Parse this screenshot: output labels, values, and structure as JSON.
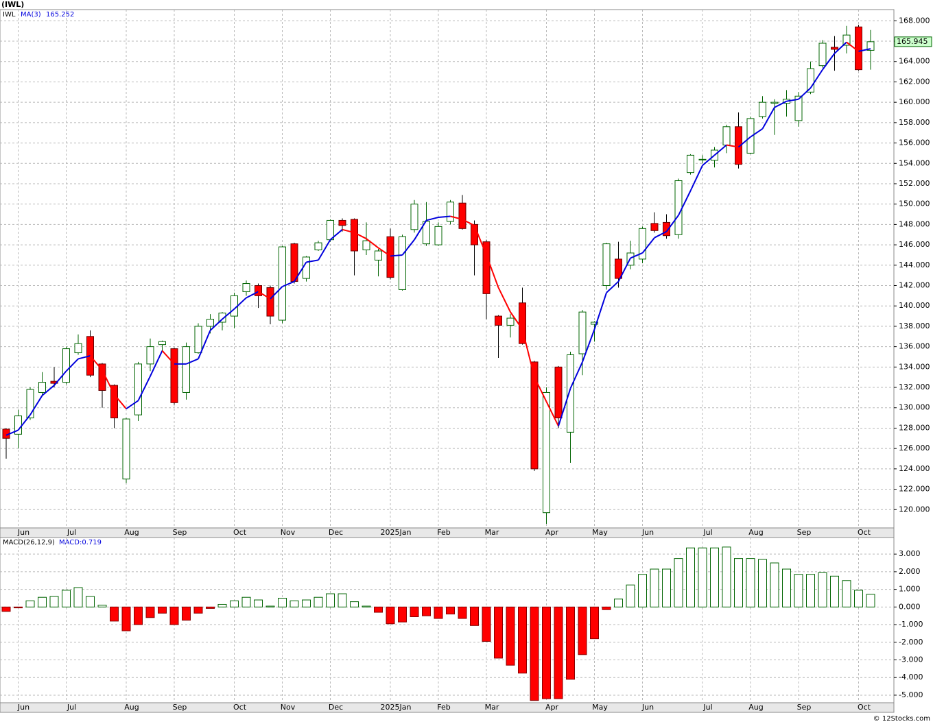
{
  "chart_data": [
    {
      "type": "candlestick",
      "title": "(IWL)",
      "symbol": "IWL",
      "categories": [
        null,
        "Jun",
        null,
        null,
        null,
        "Jul",
        null,
        null,
        null,
        null,
        "Aug",
        null,
        null,
        null,
        "Sep",
        null,
        null,
        null,
        null,
        "Oct",
        null,
        null,
        null,
        "Nov",
        null,
        null,
        null,
        "Dec",
        null,
        null,
        null,
        null,
        "2025Jan",
        null,
        null,
        null,
        "Feb",
        null,
        null,
        null,
        "Mar",
        null,
        null,
        null,
        null,
        "Apr",
        null,
        null,
        null,
        "May",
        null,
        null,
        null,
        "Jun",
        null,
        null,
        null,
        null,
        "Jul",
        null,
        null,
        null,
        "Aug",
        null,
        null,
        null,
        "Sep",
        null,
        null,
        null,
        null,
        "Oct",
        null
      ],
      "open": [
        127.9,
        127.4,
        129,
        131.5,
        132.6,
        132.5,
        135.4,
        137,
        134.3,
        132.2,
        123,
        129.3,
        134.3,
        136.2,
        135.8,
        131.5,
        135.4,
        138,
        138.4,
        139,
        141.4,
        142,
        141.8,
        138.6,
        146.1,
        142.7,
        145.5,
        146.5,
        148.4,
        148.5,
        145.5,
        144.5,
        146.8,
        141.6,
        147.5,
        146.1,
        146,
        148.3,
        150.1,
        148,
        146.3,
        139,
        138.1,
        140.3,
        134.5,
        119.7,
        134,
        127.6,
        135.3,
        138.2,
        142,
        144.6,
        144,
        144.6,
        148.1,
        148.2,
        147,
        153.1,
        154.4,
        154.3,
        155.8,
        157.6,
        155,
        158.6,
        159.9,
        159.9,
        158.2,
        161,
        163.6,
        165.4,
        165.6,
        167.4,
        165.1
      ],
      "high": [
        128,
        129.8,
        132,
        133.5,
        134,
        136,
        137.2,
        137.6,
        134.4,
        132.3,
        129,
        134.5,
        136.8,
        136.6,
        135.9,
        136.4,
        138.3,
        139.2,
        139.4,
        141.3,
        142.5,
        142.2,
        142,
        145.9,
        146.2,
        144.9,
        146.4,
        148.5,
        148.6,
        148.6,
        148.2,
        145.6,
        147.6,
        147,
        150.4,
        150.2,
        148.2,
        150.4,
        150.9,
        148.4,
        146.5,
        139.1,
        139.2,
        141.8,
        134.6,
        132,
        134.1,
        135.5,
        139.6,
        138.5,
        146.2,
        146.3,
        146.4,
        147.8,
        149.2,
        149,
        152.5,
        154.9,
        154.8,
        155.6,
        157.8,
        159,
        158.6,
        160.6,
        160.3,
        161.2,
        161,
        164,
        166.1,
        166.5,
        167.5,
        167.6,
        167.1
      ],
      "low": [
        125,
        126,
        128.8,
        131.2,
        132,
        132.3,
        135.2,
        133,
        130,
        128,
        122.6,
        128.7,
        133.6,
        135.6,
        130.3,
        130.8,
        135.3,
        137.3,
        137.6,
        137.8,
        141,
        139.8,
        138.2,
        138.3,
        142.2,
        142.4,
        145.4,
        146.3,
        147.3,
        143,
        145,
        142.9,
        142.6,
        141.5,
        147.2,
        145.9,
        145.9,
        148,
        147.5,
        143,
        138.7,
        134.9,
        136.9,
        136.2,
        123.8,
        118.6,
        128,
        124.6,
        133.2,
        136.5,
        141.6,
        141.8,
        143.6,
        144.2,
        147.2,
        146.6,
        146.6,
        152.9,
        154,
        153.6,
        155,
        153.5,
        154.9,
        158.4,
        156.8,
        158.6,
        157.6,
        160.8,
        163.4,
        163.1,
        164.8,
        163.1,
        163.2
      ],
      "close": [
        127,
        129.2,
        131.8,
        132.5,
        132.4,
        135.8,
        136.3,
        133.2,
        131.7,
        129,
        128.9,
        134.3,
        136,
        136.5,
        130.5,
        136,
        138,
        138.7,
        139.3,
        141,
        142.2,
        141,
        139,
        145.8,
        142.4,
        144.8,
        146.2,
        148.4,
        147.9,
        145.4,
        146.4,
        145.4,
        142.8,
        146.8,
        150,
        148.3,
        147.8,
        150.2,
        147.6,
        146,
        141.2,
        138.1,
        138.8,
        136.3,
        124,
        131.5,
        129,
        135.2,
        139.4,
        138.4,
        146.1,
        142.7,
        145.2,
        147.6,
        147.4,
        146.9,
        152.3,
        154.8,
        154.4,
        155.3,
        157.6,
        153.9,
        158.4,
        160,
        160,
        160.3,
        160.6,
        163.3,
        165.8,
        165.2,
        166.6,
        163.2,
        165.945
      ],
      "close_label": "165.945",
      "ma": {
        "name": "MA(3)",
        "last_label": "165.252",
        "values": [
          127.3,
          127.8,
          129.3,
          131.2,
          132.2,
          133.6,
          134.8,
          135.1,
          133.7,
          131.3,
          129.9,
          130.7,
          133.1,
          135.6,
          134.3,
          134.3,
          134.8,
          137.6,
          138.7,
          139.7,
          140.8,
          141.4,
          140.7,
          141.9,
          142.4,
          144.3,
          144.5,
          146.5,
          147.5,
          147.2,
          146.6,
          145.7,
          144.9,
          145,
          146.5,
          148.4,
          148.7,
          148.8,
          148.5,
          147.9,
          145,
          141.8,
          139.4,
          137.7,
          133,
          130.6,
          128.2,
          131.9,
          134.5,
          137.7,
          141.3,
          142.4,
          144.7,
          145.2,
          146.7,
          147.3,
          148.9,
          151.3,
          153.8,
          154.8,
          155.8,
          155.6,
          156.6,
          157.4,
          159.5,
          160.1,
          160.3,
          161.4,
          163.2,
          164.8,
          165.9,
          165,
          165.252
        ]
      },
      "up_color": "#006400",
      "down_color": "#ff0000",
      "ma_color": "#0000dd",
      "ylim": [
        118.2,
        169.1
      ],
      "yticks": [
        {
          "value": 120,
          "label": "120.000"
        },
        {
          "value": 122,
          "label": "122.000"
        },
        {
          "value": 124,
          "label": "124.000"
        },
        {
          "value": 126,
          "label": "126.000"
        },
        {
          "value": 128,
          "label": "128.000"
        },
        {
          "value": 130,
          "label": "130.000"
        },
        {
          "value": 132,
          "label": "132.000"
        },
        {
          "value": 134,
          "label": "134.000"
        },
        {
          "value": 136,
          "label": "136.000"
        },
        {
          "value": 138,
          "label": "138.000"
        },
        {
          "value": 140,
          "label": "140.000"
        },
        {
          "value": 142,
          "label": "142.000"
        },
        {
          "value": 144,
          "label": "144.000"
        },
        {
          "value": 146,
          "label": "146.000"
        },
        {
          "value": 148,
          "label": "148.000"
        },
        {
          "value": 150,
          "label": "150.000"
        },
        {
          "value": 152,
          "label": "152.000"
        },
        {
          "value": 154,
          "label": "154.000"
        },
        {
          "value": 156,
          "label": "156.000"
        },
        {
          "value": 158,
          "label": "158.000"
        },
        {
          "value": 160,
          "label": "160.000"
        },
        {
          "value": 162,
          "label": "162.000"
        },
        {
          "value": 164,
          "label": "164.000"
        },
        {
          "value": 166,
          "label": "166.000"
        },
        {
          "value": 168,
          "label": "168.000"
        }
      ],
      "grid": true
    },
    {
      "type": "bar",
      "title": "MACD(26,12,9)",
      "subtitle": "MACD:0.719",
      "values": [
        -0.25,
        -0.05,
        0.35,
        0.55,
        0.6,
        0.95,
        1.1,
        0.6,
        0.1,
        -0.8,
        -1.35,
        -1.0,
        -0.6,
        -0.35,
        -1.0,
        -0.75,
        -0.35,
        -0.08,
        0.15,
        0.35,
        0.55,
        0.4,
        0.05,
        0.5,
        0.35,
        0.4,
        0.55,
        0.75,
        0.75,
        0.3,
        0.05,
        -0.3,
        -0.95,
        -0.85,
        -0.55,
        -0.5,
        -0.65,
        -0.4,
        -0.65,
        -1.05,
        -1.95,
        -2.9,
        -3.3,
        -3.75,
        -5.3,
        -5.2,
        -5.2,
        -4.1,
        -2.7,
        -1.8,
        -0.15,
        0.45,
        1.25,
        1.85,
        2.15,
        2.15,
        2.75,
        3.35,
        3.35,
        3.35,
        3.4,
        2.75,
        2.75,
        2.7,
        2.5,
        2.15,
        1.85,
        1.85,
        1.95,
        1.75,
        1.5,
        0.95,
        0.719
      ],
      "up_color": "#006400",
      "down_color": "#ff0000",
      "ylim": [
        -5.43,
        3.94
      ],
      "yticks": [
        {
          "value": -5,
          "label": "-5.000"
        },
        {
          "value": -4,
          "label": "-4.000"
        },
        {
          "value": -3,
          "label": "-3.000"
        },
        {
          "value": -2,
          "label": "-2.000"
        },
        {
          "value": -1,
          "label": "-1.000"
        },
        {
          "value": 0,
          "label": "0.000"
        },
        {
          "value": 1,
          "label": "1.000"
        },
        {
          "value": 2,
          "label": "2.000"
        },
        {
          "value": 3,
          "label": "3.000"
        }
      ],
      "grid": true
    }
  ],
  "footer": "© 12Stocks.com"
}
